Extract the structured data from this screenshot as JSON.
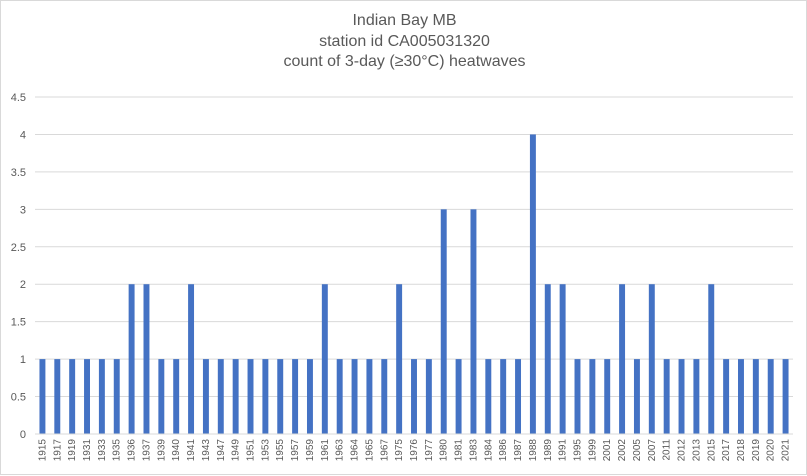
{
  "chart_data": {
    "type": "bar",
    "title_lines": [
      "Indian Bay MB",
      "station id CA005031320",
      "count of 3-day (≥30°C) heatwaves"
    ],
    "xlabel": "",
    "ylabel": "",
    "ylim": [
      0,
      4.5
    ],
    "yticks": [
      "0",
      "0.5",
      "1",
      "1.5",
      "2",
      "2.5",
      "3",
      "3.5",
      "4",
      "4.5"
    ],
    "grid": true,
    "legend": "none",
    "bar_color": "#4472c4",
    "grid_color": "#d9d9d9",
    "categories": [
      "1915",
      "1917",
      "1919",
      "1931",
      "1933",
      "1935",
      "1936",
      "1937",
      "1939",
      "1940",
      "1941",
      "1943",
      "1947",
      "1949",
      "1951",
      "1953",
      "1955",
      "1957",
      "1959",
      "1961",
      "1963",
      "1964",
      "1965",
      "1967",
      "1975",
      "1976",
      "1977",
      "1980",
      "1981",
      "1983",
      "1984",
      "1986",
      "1987",
      "1988",
      "1989",
      "1991",
      "1995",
      "1999",
      "2001",
      "2002",
      "2005",
      "2007",
      "2011",
      "2012",
      "2013",
      "2015",
      "2017",
      "2018",
      "2019",
      "2020",
      "2021"
    ],
    "values": [
      1,
      1,
      1,
      1,
      1,
      1,
      2,
      2,
      1,
      1,
      2,
      1,
      1,
      1,
      1,
      1,
      1,
      1,
      1,
      2,
      1,
      1,
      1,
      1,
      2,
      1,
      1,
      3,
      1,
      3,
      1,
      1,
      1,
      4,
      2,
      2,
      1,
      1,
      1,
      2,
      1,
      2,
      1,
      1,
      1,
      2,
      1,
      1,
      1,
      1,
      1
    ]
  }
}
